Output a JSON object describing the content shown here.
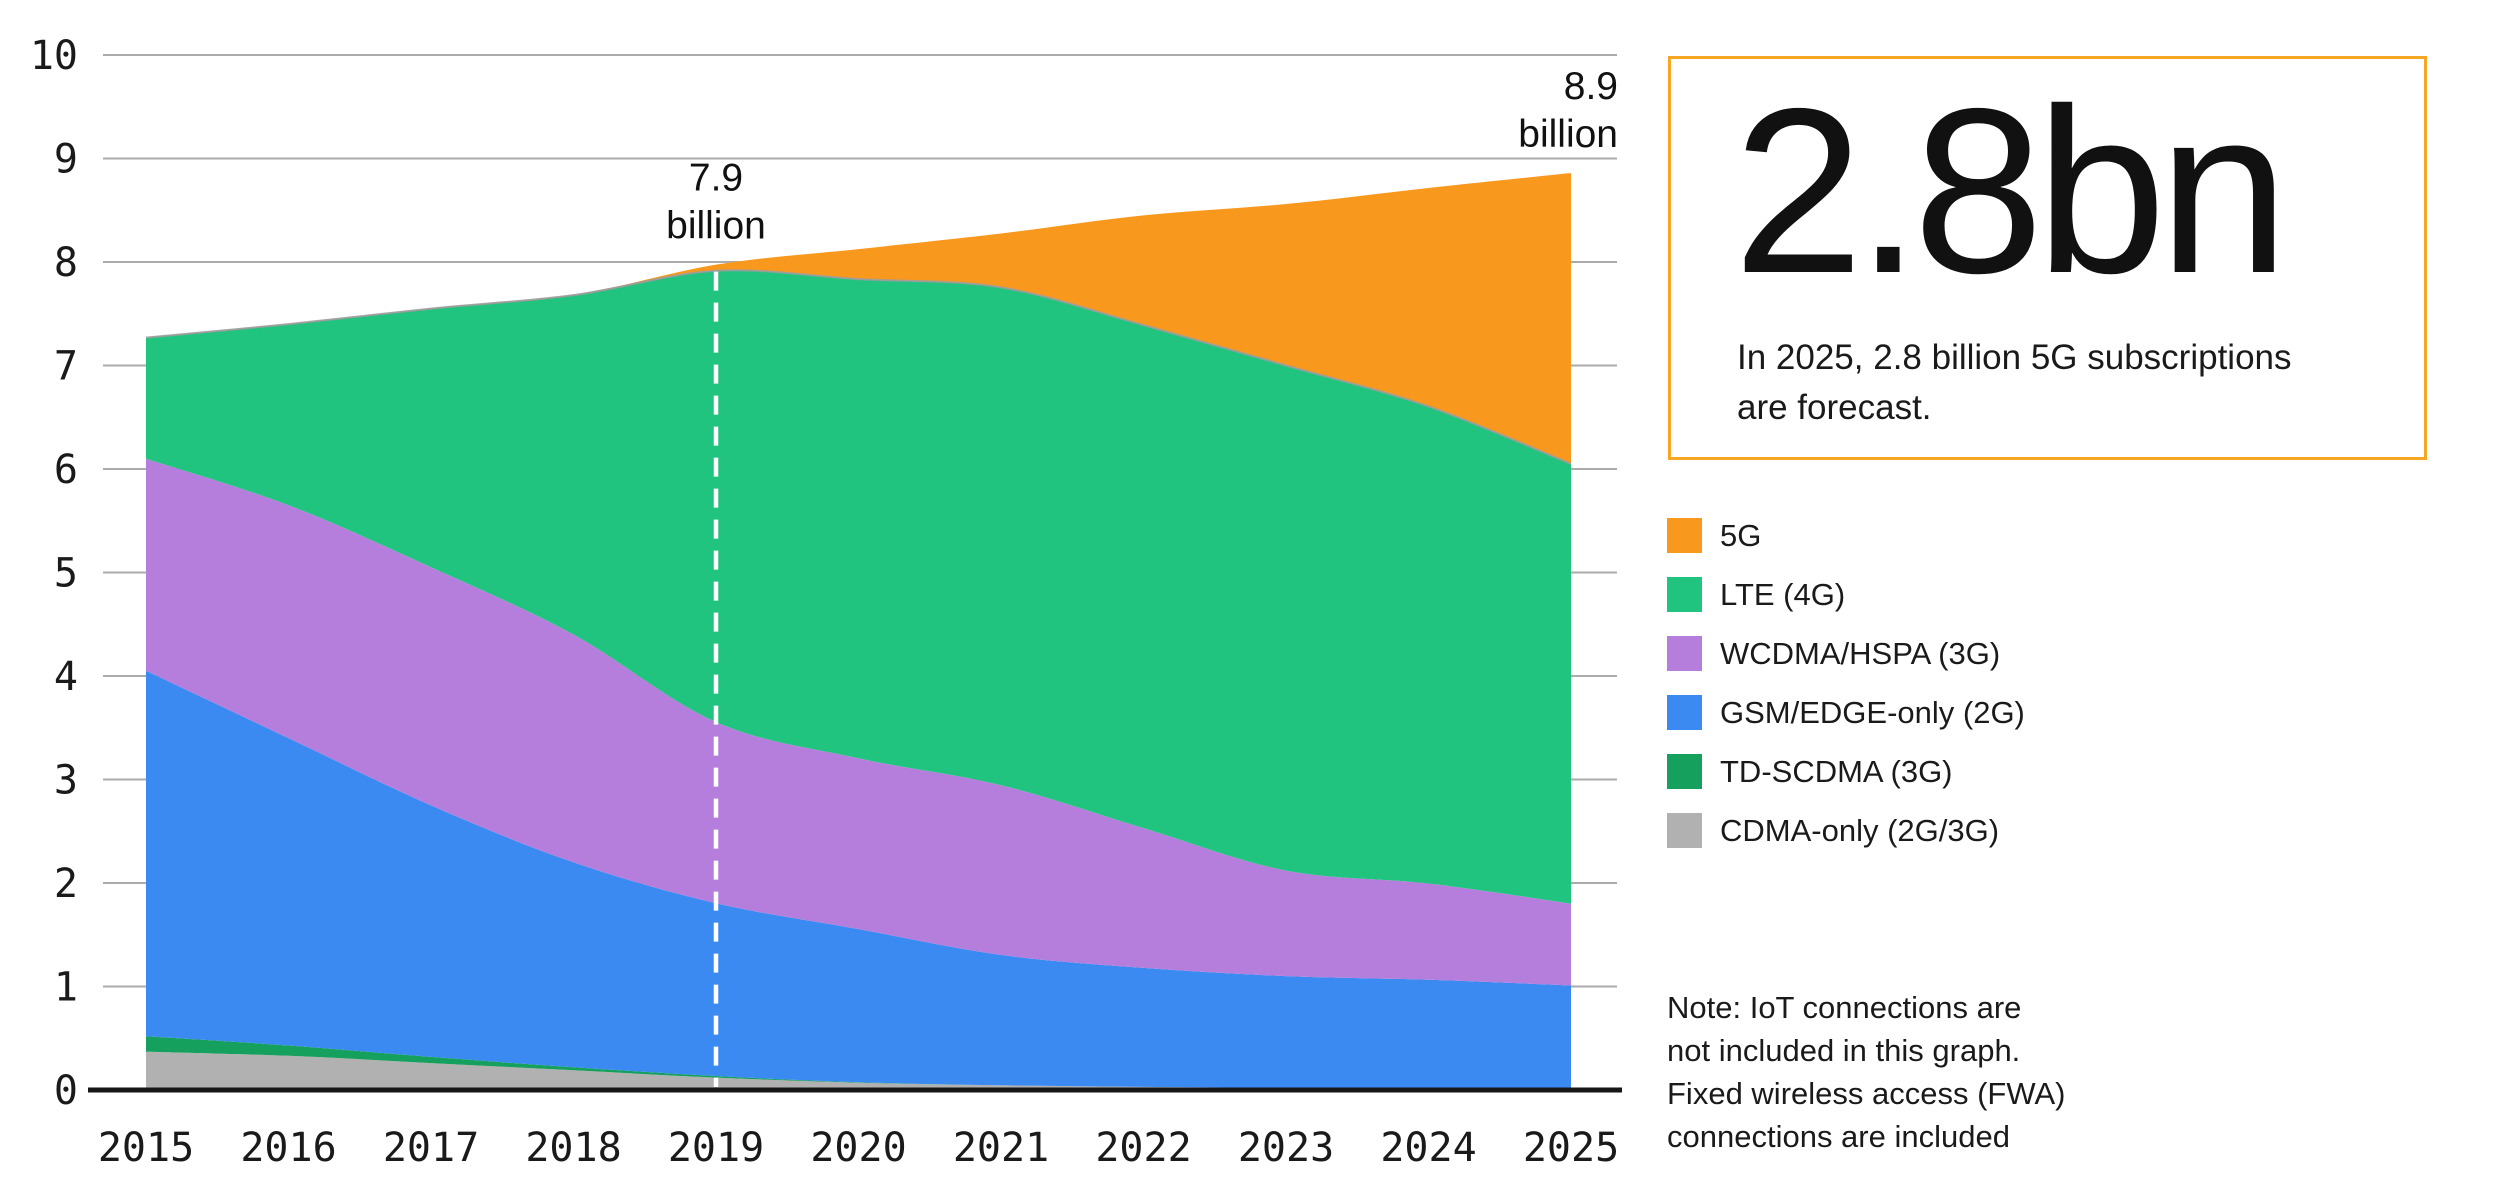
{
  "chart_data": {
    "type": "area",
    "stacked": true,
    "title": "",
    "xlabel": "",
    "ylabel": "",
    "x": [
      2015,
      2016,
      2017,
      2018,
      2019,
      2020,
      2021,
      2022,
      2023,
      2024,
      2025
    ],
    "x_tick_labels": [
      "2015",
      "2016",
      "2017",
      "2018",
      "2019",
      "2020",
      "2021",
      "2022",
      "2023",
      "2024",
      "2025"
    ],
    "y_ticks": [
      0,
      1,
      2,
      3,
      4,
      5,
      6,
      7,
      8,
      9,
      10
    ],
    "ylim": [
      0,
      10
    ],
    "grid": true,
    "legend_position": "right-outside",
    "series": [
      {
        "name": "5G",
        "color": "#F8981D",
        "values": [
          0,
          0,
          0,
          0,
          0.06,
          0.29,
          0.52,
          1.06,
          1.56,
          2.11,
          2.81
        ]
      },
      {
        "name": "LTE (4G)",
        "color": "#21C47F",
        "values": [
          1.17,
          1.75,
          2.5,
          3.28,
          4.36,
          4.63,
          4.81,
          4.86,
          4.88,
          4.61,
          4.25
        ]
      },
      {
        "name": "WCDMA/HSPA (3G)",
        "color": "#B57EDC",
        "values": [
          2.05,
          2.25,
          2.3,
          2.2,
          1.75,
          1.65,
          1.64,
          1.35,
          1.02,
          0.93,
          0.79
        ]
      },
      {
        "name": "GSM/EDGE-only (2G)",
        "color": "#3A8AF2",
        "values": [
          3.53,
          2.97,
          2.43,
          1.98,
          1.67,
          1.48,
          1.26,
          1.15,
          1.08,
          1.05,
          1.0
        ]
      },
      {
        "name": "TD-SCDMA (3G)",
        "color": "#16A05E",
        "values": [
          0.15,
          0.1,
          0.06,
          0.03,
          0.015,
          0.005,
          0,
          0,
          0,
          0,
          0
        ]
      },
      {
        "name": "CDMA-only (2G/3G)",
        "color": "#B1B1B1",
        "values": [
          0.37,
          0.33,
          0.26,
          0.19,
          0.12,
          0.07,
          0.045,
          0.03,
          0.02,
          0.015,
          0.01
        ]
      }
    ],
    "annotations": [
      {
        "x": 2019,
        "anchor": "middle",
        "lines": [
          "7.9",
          "billion"
        ]
      },
      {
        "x": 2025,
        "anchor": "end",
        "lines": [
          "8.9",
          "billion"
        ]
      }
    ],
    "dashed_guide_x": 2019,
    "axis_colors": {
      "grid": "#ABABAB",
      "baseline": "#161616",
      "text": "#1A1A1A",
      "total_line": "#9C9C9C",
      "guide": "#FFFFFF"
    }
  },
  "callout": {
    "headline": "2.8bn",
    "desc": [
      "In 2025, 2.8 billion 5G subscriptions",
      "are forecast."
    ],
    "border_color": "#F5A623"
  },
  "note": {
    "lines": [
      "Note: IoT connections are",
      "not included in this graph.",
      "Fixed wireless access (FWA)",
      "connections are included"
    ]
  }
}
